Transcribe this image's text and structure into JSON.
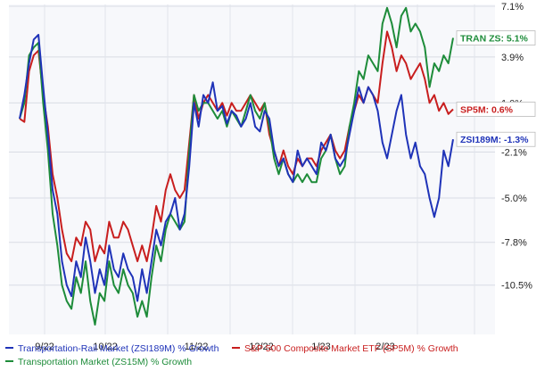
{
  "chart_data": {
    "type": "line",
    "x_ticks": [
      "9/22",
      "10/22",
      "11/22",
      "12/22",
      "1/23",
      "2/23"
    ],
    "y_ticks": [
      7.1,
      3.9,
      1.0,
      -2.1,
      -5.0,
      -7.8,
      -10.5
    ],
    "y_tick_labels": [
      "7.1%",
      "3.9%",
      "1.0%",
      "-2.1%",
      "-5.0%",
      "-7.8%",
      "-10.5%"
    ],
    "ylim": [
      -13.5,
      7.1
    ],
    "grid": true,
    "series": [
      {
        "name": "Transportation-Rail Market (ZSI189M) % Growth",
        "tag": "ZSI189M: -1.3%",
        "color": "#1f33b8",
        "values": [
          0,
          1.5,
          3.5,
          5.0,
          5.3,
          2.0,
          -1.0,
          -4.5,
          -6.0,
          -9.0,
          -10.5,
          -11.2,
          -9.0,
          -10.0,
          -7.5,
          -9.0,
          -11.0,
          -9.5,
          -10.5,
          -8.0,
          -9.5,
          -10.0,
          -8.5,
          -9.5,
          -10.0,
          -11.5,
          -9.5,
          -11.0,
          -9.0,
          -7.0,
          -8.0,
          -6.5,
          -6.0,
          -5.0,
          -7.0,
          -6.0,
          -3.0,
          1.0,
          -0.5,
          1.5,
          1.0,
          2.3,
          0.5,
          0.8,
          -0.3,
          0.5,
          0.2,
          -0.5,
          0.0,
          1.0,
          -0.5,
          -0.8,
          0.5,
          0.0,
          -2.0,
          -3.0,
          -2.5,
          -3.5,
          -4.0,
          -2.0,
          -3.0,
          -2.5,
          -3.0,
          -3.5,
          -1.5,
          -2.0,
          -1.0,
          -2.5,
          -3.0,
          -2.5,
          -1.0,
          0.5,
          2.0,
          1.0,
          2.0,
          1.5,
          0.5,
          -1.5,
          -2.5,
          -1.0,
          0.5,
          1.5,
          -1.0,
          -2.5,
          -1.5,
          -3.0,
          -3.5,
          -5.0,
          -6.2,
          -5.0,
          -2.0,
          -3.0,
          -1.3
        ]
      },
      {
        "name": "S&P 500 Composite Market ETF (SP5M) % Growth",
        "tag": "SP5M: 0.6%",
        "color": "#c81e1e",
        "values": [
          0,
          -0.2,
          3.0,
          4.0,
          4.3,
          1.5,
          -0.5,
          -3.5,
          -5.0,
          -7.0,
          -8.5,
          -9.0,
          -7.5,
          -8.0,
          -6.5,
          -7.0,
          -9.0,
          -8.0,
          -8.5,
          -6.5,
          -7.5,
          -7.5,
          -6.5,
          -7.0,
          -8.0,
          -9.0,
          -8.0,
          -9.0,
          -7.5,
          -5.5,
          -6.5,
          -4.5,
          -3.5,
          -4.5,
          -5.0,
          -4.5,
          -1.5,
          1.5,
          0.0,
          1.0,
          1.5,
          1.0,
          0.5,
          1.0,
          0.2,
          1.0,
          0.5,
          0.5,
          1.0,
          1.5,
          1.0,
          0.5,
          1.0,
          -1.0,
          -2.0,
          -3.0,
          -2.0,
          -3.0,
          -3.5,
          -2.5,
          -3.0,
          -2.5,
          -2.5,
          -3.0,
          -2.0,
          -1.5,
          -1.0,
          -2.0,
          -2.5,
          -2.0,
          -0.5,
          0.5,
          1.5,
          1.0,
          2.0,
          1.5,
          1.0,
          3.5,
          5.5,
          4.5,
          3.0,
          4.0,
          3.5,
          2.5,
          3.0,
          3.5,
          2.5,
          1.0,
          1.5,
          0.5,
          1.0,
          0.3,
          0.6
        ]
      },
      {
        "name": "Transportation Market (ZS15M) % Growth",
        "tag": "TRAN ZS: 5.1%",
        "color": "#1e8c3a",
        "values": [
          0,
          1.0,
          4.0,
          4.5,
          4.8,
          1.0,
          -2.0,
          -6.0,
          -8.0,
          -10.5,
          -11.5,
          -12.0,
          -10.0,
          -11.0,
          -9.0,
          -11.5,
          -13.0,
          -11.0,
          -11.5,
          -9.0,
          -10.5,
          -11.0,
          -9.5,
          -10.5,
          -11.0,
          -12.5,
          -11.5,
          -12.5,
          -10.0,
          -8.0,
          -9.0,
          -7.0,
          -6.0,
          -6.5,
          -7.0,
          -6.5,
          -2.0,
          1.5,
          0.5,
          1.0,
          1.0,
          0.5,
          0.0,
          0.5,
          -0.5,
          0.5,
          0.0,
          -0.5,
          0.5,
          1.5,
          0.5,
          0.0,
          1.0,
          -0.5,
          -2.5,
          -3.5,
          -2.5,
          -3.5,
          -4.0,
          -3.5,
          -4.0,
          -3.5,
          -4.0,
          -4.0,
          -2.5,
          -2.0,
          -1.0,
          -2.5,
          -3.5,
          -3.0,
          -0.5,
          1.0,
          3.0,
          2.5,
          4.0,
          3.5,
          3.0,
          6.0,
          7.0,
          6.0,
          4.5,
          6.5,
          7.0,
          5.5,
          6.0,
          5.5,
          4.5,
          2.0,
          3.5,
          3.0,
          4.0,
          3.5,
          5.1
        ]
      }
    ]
  }
}
